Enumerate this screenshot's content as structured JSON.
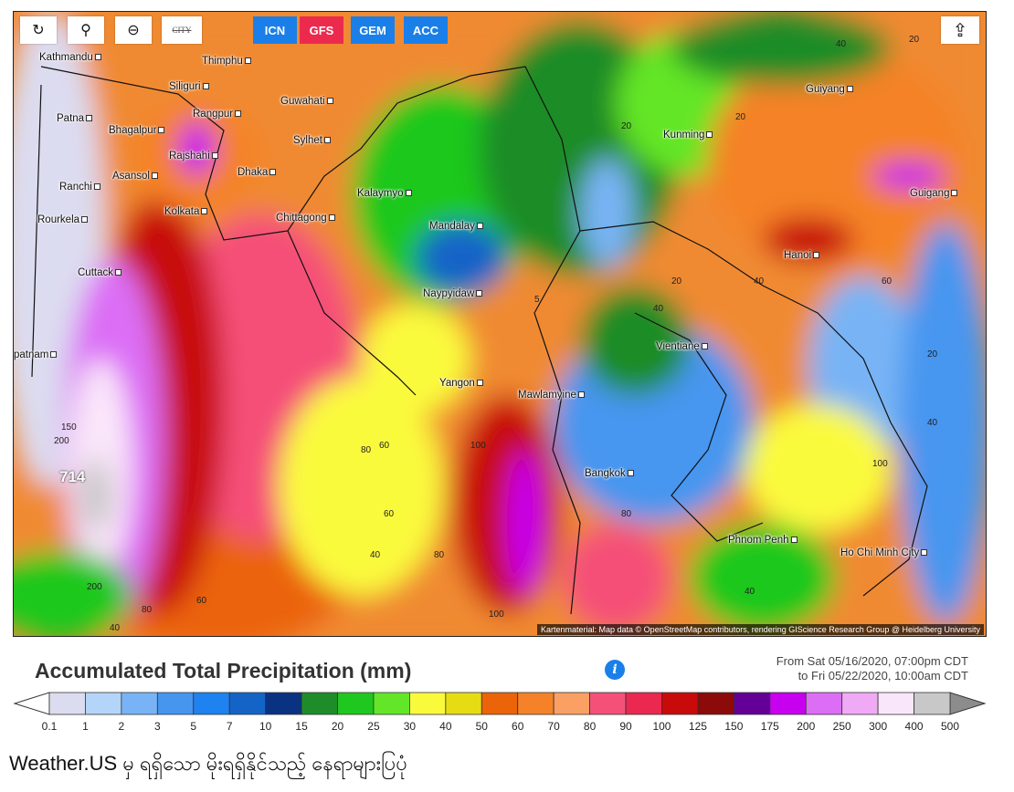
{
  "toolbar": {
    "buttons": [
      {
        "name": "refresh-icon",
        "glyph": "↻"
      },
      {
        "name": "location-pin-icon",
        "glyph": "⚲"
      },
      {
        "name": "zoom-out-icon",
        "glyph": "⊖"
      },
      {
        "name": "city-toggle",
        "label": "CITY"
      }
    ],
    "models": [
      {
        "label": "ICN",
        "color": "#1a7fe8"
      },
      {
        "label": "GFS",
        "color": "#ec2a4e",
        "active": true
      },
      {
        "label": "GEM",
        "color": "#1a7fe8"
      },
      {
        "label": "ACC",
        "color": "#1a7fe8"
      }
    ],
    "share_icon": "share-icon"
  },
  "map": {
    "cities": [
      "Kathmandu",
      "Thimphu",
      "Siliguri",
      "Guwahati",
      "Patna",
      "Rangpur",
      "Bhagalpur",
      "Sylhet",
      "Rajshahi",
      "Dhaka",
      "Asansol",
      "Ranchi",
      "Kalaymyo",
      "Rourkela",
      "Kolkata",
      "Chittagong",
      "Mandalay",
      "Cuttack",
      "Naypyidaw",
      "Vientiane",
      "Yangon",
      "Mawlamyine",
      "Bangkok",
      "Phnom Penh",
      "Ho Chi Minh City",
      "Kunming",
      "Guiyang",
      "Guigang",
      "Hanoi",
      "patnam"
    ],
    "values": [
      "714",
      "200",
      "150",
      "200",
      "80",
      "60",
      "40",
      "100",
      "80",
      "60",
      "40",
      "60",
      "80",
      "100",
      "40",
      "20",
      "20",
      "40",
      "5",
      "20",
      "40",
      "20",
      "40",
      "80",
      "100",
      "60",
      "20",
      "40"
    ],
    "attribution": "Kartenmaterial: Map data © OpenStreetMap contributors, rendering GIScience Research Group @ Heidelberg University"
  },
  "legend": {
    "title": "Accumulated Total Precipitation (mm)",
    "info_icon": "info-icon",
    "from": "From Sat 05/16/2020, 07:00pm CDT",
    "to": "to Fri 05/22/2020, 10:00am CDT",
    "labels": [
      "0.1",
      "1",
      "2",
      "3",
      "5",
      "7",
      "10",
      "15",
      "20",
      "25",
      "30",
      "40",
      "50",
      "60",
      "70",
      "80",
      "90",
      "100",
      "125",
      "150",
      "175",
      "200",
      "250",
      "300",
      "400",
      "500"
    ],
    "colors": [
      "#dcdcf0",
      "#b4d4fa",
      "#78b4f5",
      "#4696f0",
      "#1e82f0",
      "#1464c8",
      "#0a3282",
      "#1e8c28",
      "#1ec81e",
      "#64e628",
      "#fafa3c",
      "#e6dc14",
      "#eb640a",
      "#f58228",
      "#faa064",
      "#f55078",
      "#eb2850",
      "#c80a0a",
      "#8c0a0a",
      "#640096",
      "#c800f0",
      "#dc6ef5",
      "#f0aaf5",
      "#fae6fa",
      "#c8c8c8"
    ],
    "under_color": "#ffffff",
    "over_color": "#8c8c8c"
  },
  "caption": "Weather.US မှ ရရှိသော မိုးရရှိနိုင်သည့် နေရာများပြပုံ"
}
